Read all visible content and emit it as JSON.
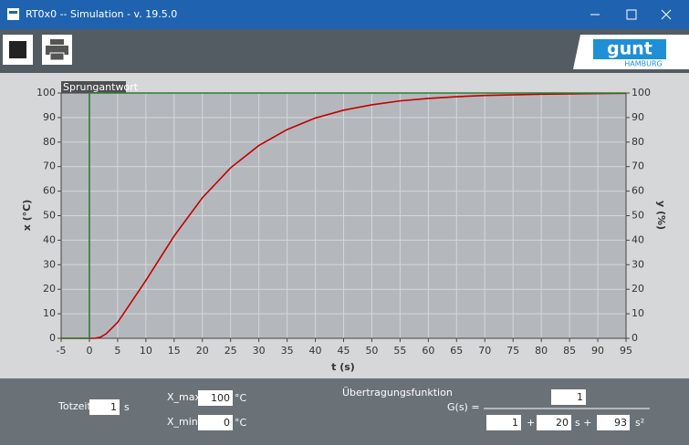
{
  "window": {
    "title": "RT0x0  --  Simulation - v. 19.5.0",
    "logo": {
      "name": "gunt",
      "city": "HAMBURG"
    }
  },
  "chart_data": {
    "type": "line",
    "title": "Sprungantwort",
    "xlabel": "t (s)",
    "ylabel": "x (°C)",
    "y2label": "y (%)",
    "xlim": [
      -5,
      95
    ],
    "xticks": [
      -5,
      0,
      5,
      10,
      15,
      20,
      25,
      30,
      35,
      40,
      45,
      50,
      55,
      60,
      65,
      70,
      75,
      80,
      85,
      90,
      95
    ],
    "ylim": [
      0,
      100
    ],
    "yticks": [
      0,
      10,
      20,
      30,
      40,
      50,
      60,
      70,
      80,
      90,
      100
    ],
    "y2lim": [
      0,
      100
    ],
    "y2ticks": [
      0,
      10,
      20,
      30,
      40,
      50,
      60,
      70,
      80,
      90,
      100
    ],
    "grid": true,
    "series": [
      {
        "color": "#c00000",
        "x": [
          -5,
          1,
          2,
          3,
          5,
          10,
          15,
          20,
          25,
          30,
          35,
          40,
          45,
          50,
          55,
          60,
          65,
          70,
          80,
          90,
          95
        ],
        "values": [
          0,
          0,
          0.5,
          1.9,
          6.5,
          23.6,
          41.7,
          57.3,
          69.5,
          78.6,
          85.1,
          89.8,
          93.0,
          95.2,
          96.8,
          97.8,
          98.5,
          99.0,
          99.5,
          99.8,
          99.9
        ]
      },
      {
        "color": "#2e7d32",
        "axis": "y2",
        "x": [
          -5,
          0,
          0,
          95
        ],
        "values": [
          0,
          0,
          100,
          100
        ]
      }
    ]
  },
  "panel": {
    "dead_time": {
      "label": "Totzeit",
      "value": 1,
      "unit": "s"
    },
    "x_max": {
      "label": "X_max",
      "value": 100,
      "unit": "°C"
    },
    "x_min": {
      "label": "X_min",
      "value": 0,
      "unit": "°C"
    },
    "transfer_function": {
      "label": "Übertragungsfunktion",
      "lhs": "G(s) =",
      "numerator": 1,
      "denominator": {
        "c0": 1,
        "plus": "+",
        "c1": 20,
        "s_plus": "s +",
        "c2": 93,
        "s2": "s²"
      }
    }
  }
}
